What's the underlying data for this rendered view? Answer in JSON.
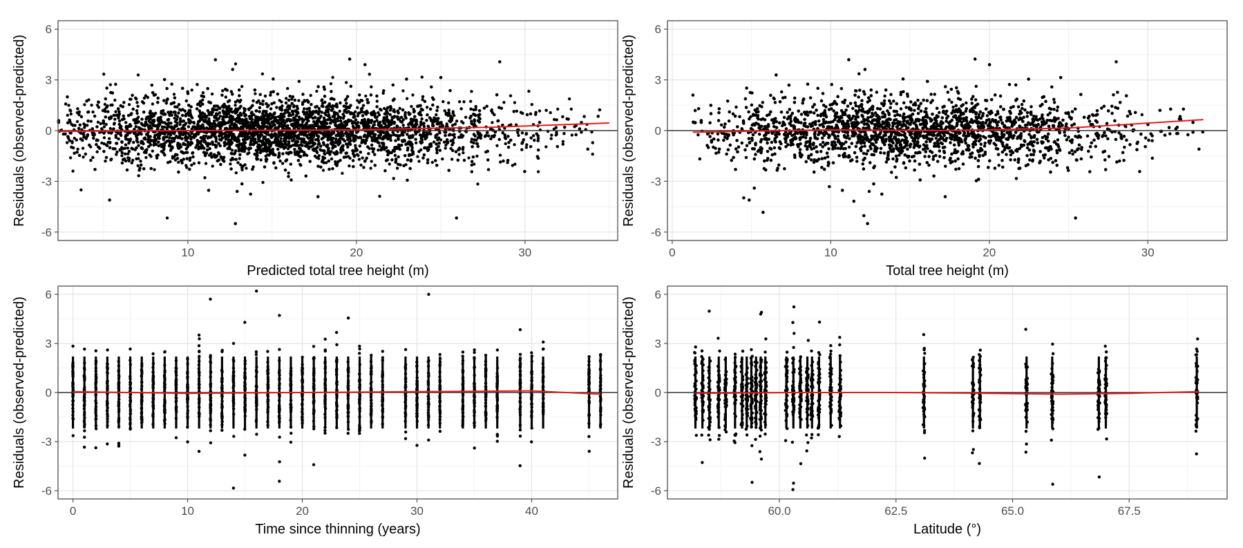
{
  "colors": {
    "points": "#000000",
    "fit_line": "#e41a1c",
    "zero_line": "#333333",
    "grid_major": "#e6e6e6",
    "grid_minor": "#f2f2f2",
    "panel_border": "#4d4d4d"
  },
  "chart_data": [
    {
      "type": "scatter",
      "title": "",
      "xlabel": "Predicted total tree height (m)",
      "ylabel": "Residuals (observed-predicted)",
      "xlim": [
        2.3,
        35.5
      ],
      "ylim": [
        -6.5,
        6.5
      ],
      "x_ticks": [
        10,
        20,
        30
      ],
      "x_tick_labels": [
        "10",
        "20",
        "30"
      ],
      "y_ticks": [
        -6,
        -3,
        0,
        3,
        6
      ],
      "y_tick_labels": [
        "-6",
        "-3",
        "0",
        "3",
        "6"
      ],
      "grid": true,
      "reference_line_y": 0,
      "distribution": {
        "kind": "continuous",
        "x_center": 15.5,
        "x_spread": 6.8,
        "x_min": 2.3,
        "x_max": 35.0,
        "resid_sd": 0.95,
        "n_points": 5200
      },
      "smooth_fit": {
        "x": [
          2.3,
          10,
          20,
          28,
          35
        ],
        "y": [
          -0.05,
          0.0,
          0.05,
          0.2,
          0.45
        ]
      }
    },
    {
      "type": "scatter",
      "title": "",
      "xlabel": "Total tree height (m)",
      "ylabel": "Residuals (observed-predicted)",
      "xlim": [
        -0.3,
        35.0
      ],
      "ylim": [
        -6.5,
        6.5
      ],
      "x_ticks": [
        0,
        10,
        20,
        30
      ],
      "x_tick_labels": [
        "0",
        "10",
        "20",
        "30"
      ],
      "y_ticks": [
        -6,
        -3,
        0,
        3,
        6
      ],
      "y_tick_labels": [
        "-6",
        "-3",
        "0",
        "3",
        "6"
      ],
      "grid": true,
      "reference_line_y": 0,
      "distribution": {
        "kind": "continuous",
        "x_center": 15.0,
        "x_spread": 6.8,
        "x_min": 1.3,
        "x_max": 33.5,
        "resid_sd": 0.95,
        "n_points": 5200
      },
      "smooth_fit": {
        "x": [
          1.3,
          10,
          17,
          25,
          33.5
        ],
        "y": [
          -0.1,
          0.05,
          0.0,
          0.15,
          0.65
        ]
      }
    },
    {
      "type": "scatter",
      "title": "",
      "xlabel": "Time since thinning (years)",
      "ylabel": "Residuals (observed-predicted)",
      "xlim": [
        -1.3,
        47.5
      ],
      "ylim": [
        -6.5,
        6.5
      ],
      "x_ticks": [
        0,
        10,
        20,
        30,
        40
      ],
      "x_tick_labels": [
        "0",
        "10",
        "20",
        "30",
        "40"
      ],
      "y_ticks": [
        -6,
        -3,
        0,
        3,
        6
      ],
      "y_tick_labels": [
        "-6",
        "-3",
        "0",
        "3",
        "6"
      ],
      "grid": true,
      "reference_line_y": 0,
      "distribution": {
        "kind": "discrete",
        "x_values": [
          0,
          1,
          2,
          3,
          4,
          5,
          6,
          7,
          8,
          9,
          10,
          11,
          12,
          13,
          14,
          15,
          16,
          17,
          18,
          19,
          20,
          21,
          22,
          23,
          24,
          25,
          26,
          27,
          29,
          30,
          31,
          32,
          34,
          35,
          36,
          37,
          39,
          40,
          41,
          45,
          46
        ],
        "resid_sd": 1.1,
        "points_per_x": 38
      },
      "smooth_fit": {
        "x": [
          0,
          10,
          20,
          30,
          40,
          46
        ],
        "y": [
          0.05,
          -0.05,
          0.0,
          0.05,
          0.1,
          -0.1
        ]
      }
    },
    {
      "type": "scatter",
      "title": "",
      "xlabel": "Latitude (°)",
      "ylabel": "Residuals (observed-predicted)",
      "xlim": [
        57.6,
        69.6
      ],
      "ylim": [
        -6.5,
        6.5
      ],
      "x_ticks": [
        60.0,
        62.5,
        65.0,
        67.5
      ],
      "x_tick_labels": [
        "60.0",
        "62.5",
        "65.0",
        "67.5"
      ],
      "y_ticks": [
        -6,
        -3,
        0,
        3,
        6
      ],
      "y_tick_labels": [
        "-6",
        "-3",
        "0",
        "3",
        "6"
      ],
      "grid": true,
      "reference_line_y": 0,
      "distribution": {
        "kind": "discrete",
        "x_values": [
          58.2,
          58.35,
          58.5,
          58.7,
          58.85,
          59.05,
          59.2,
          59.3,
          59.4,
          59.5,
          59.6,
          59.7,
          60.15,
          60.3,
          60.45,
          60.6,
          60.7,
          60.85,
          61.1,
          61.3,
          63.1,
          64.15,
          64.3,
          65.3,
          65.85,
          66.85,
          67.0,
          68.95
        ],
        "resid_sd": 1.2,
        "points_per_x": 42
      },
      "smooth_fit": {
        "x": [
          58.2,
          60.5,
          62.5,
          64.5,
          66.0,
          67.5,
          69.0
        ],
        "y": [
          -0.05,
          0.0,
          0.0,
          -0.05,
          -0.1,
          -0.05,
          0.05
        ]
      }
    }
  ]
}
